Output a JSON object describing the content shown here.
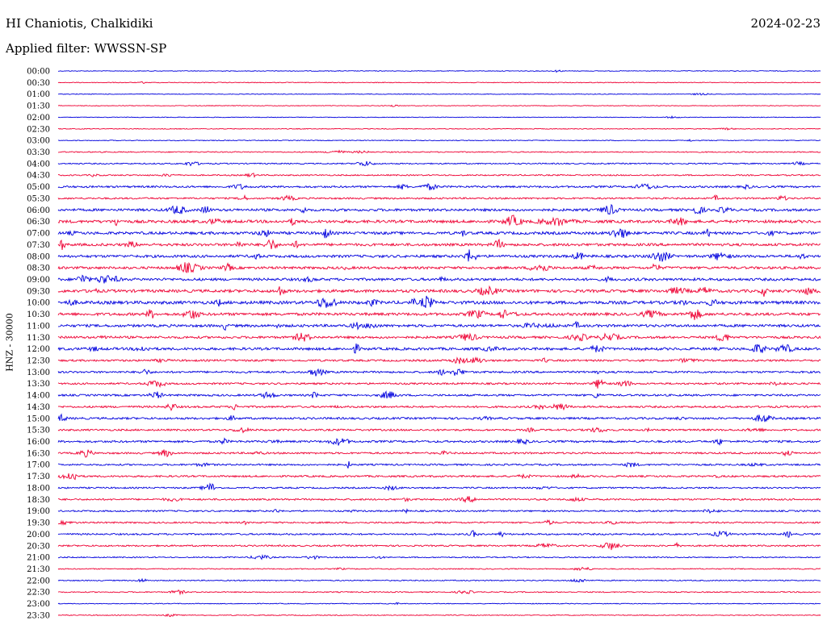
{
  "header": {
    "station": "HI Chaniotis, Chalkidiki",
    "date": "2024-02-23",
    "filter": "Applied filter: WWSSN-SP",
    "channel_label": "HNZ - 30000"
  },
  "colors": {
    "trace_a": "#0000dd",
    "trace_b": "#ee0033"
  },
  "chart_data": {
    "type": "line",
    "title": "HI Chaniotis, Chalkidiki",
    "date": "2024-02-23",
    "ylabel": "HNZ - 30000",
    "y_tick_labels": [
      "00:00",
      "00:30",
      "01:00",
      "01:30",
      "02:00",
      "02:30",
      "03:00",
      "03:30",
      "04:00",
      "04:30",
      "05:00",
      "05:30",
      "06:00",
      "06:30",
      "07:00",
      "07:30",
      "08:00",
      "08:30",
      "09:00",
      "09:30",
      "10:00",
      "10:30",
      "11:00",
      "11:30",
      "12:00",
      "12:30",
      "13:00",
      "13:30",
      "14:00",
      "14:30",
      "15:00",
      "15:30",
      "16:00",
      "16:30",
      "17:00",
      "17:30",
      "18:00",
      "18:30",
      "19:00",
      "19:30",
      "20:00",
      "20:30",
      "21:00",
      "21:30",
      "22:00",
      "22:30",
      "23:00",
      "23:30"
    ],
    "activity": [
      0.08,
      0.1,
      0.07,
      0.06,
      0.06,
      0.1,
      0.12,
      0.22,
      0.28,
      0.3,
      0.55,
      0.45,
      0.75,
      0.9,
      0.85,
      0.8,
      0.8,
      0.75,
      0.8,
      0.9,
      1.0,
      0.85,
      0.8,
      0.7,
      0.8,
      0.55,
      0.55,
      0.5,
      0.55,
      0.55,
      0.6,
      0.5,
      0.6,
      0.5,
      0.45,
      0.5,
      0.4,
      0.45,
      0.4,
      0.4,
      0.45,
      0.4,
      0.25,
      0.2,
      0.22,
      0.22,
      0.12,
      0.12
    ],
    "grid": false
  }
}
